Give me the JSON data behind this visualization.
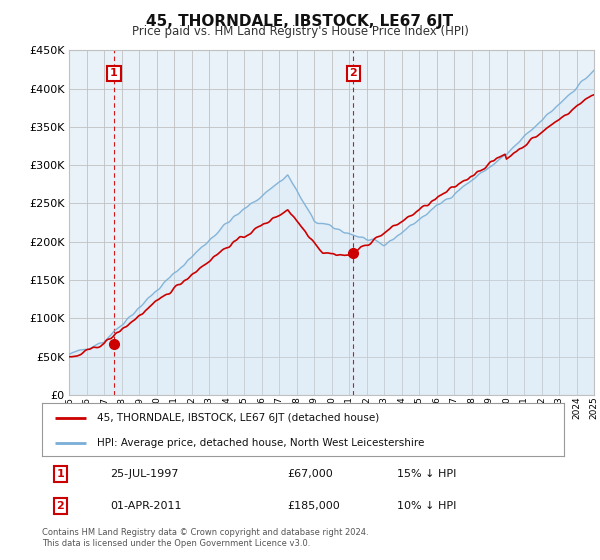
{
  "title": "45, THORNDALE, IBSTOCK, LE67 6JT",
  "subtitle": "Price paid vs. HM Land Registry's House Price Index (HPI)",
  "legend_line1": "45, THORNDALE, IBSTOCK, LE67 6JT (detached house)",
  "legend_line2": "HPI: Average price, detached house, North West Leicestershire",
  "annotation1_label": "1",
  "annotation1_date": "25-JUL-1997",
  "annotation1_price": "£67,000",
  "annotation1_hpi": "15% ↓ HPI",
  "annotation2_label": "2",
  "annotation2_date": "01-APR-2011",
  "annotation2_price": "£185,000",
  "annotation2_hpi": "10% ↓ HPI",
  "footnote": "Contains HM Land Registry data © Crown copyright and database right 2024.\nThis data is licensed under the Open Government Licence v3.0.",
  "price_color": "#cc0000",
  "hpi_color": "#7aaed6",
  "hpi_fill_color": "#d6e8f5",
  "vline_color": "#cc0000",
  "annotation_box_color": "#cc0000",
  "background_color": "#ffffff",
  "chart_bg_color": "#e8f2f8",
  "grid_color": "#c0c0c0",
  "ylim": [
    0,
    450000
  ],
  "yticks": [
    0,
    50000,
    100000,
    150000,
    200000,
    250000,
    300000,
    350000,
    400000,
    450000
  ],
  "x_start_year": 1995,
  "x_end_year": 2025,
  "sale1_year": 1997.57,
  "sale1_price": 67000,
  "sale2_year": 2011.25,
  "sale2_price": 185000
}
